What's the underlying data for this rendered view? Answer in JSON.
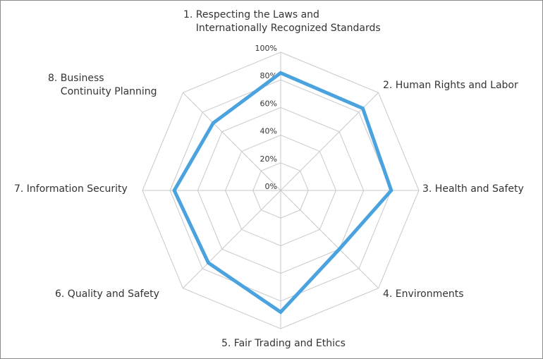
{
  "chart_data": {
    "type": "radar",
    "title": "",
    "categories": [
      "1. Respecting the Laws and\n    Internationally Recognized Standards",
      "2. Human Rights and Labor",
      "3. Health and Safety",
      "4. Environments",
      "5. Fair Trading and Ethics",
      "6. Quality and Safety",
      "7. Information Security",
      "8. Business\n    Continuity Planning"
    ],
    "series": [
      {
        "values": [
          85,
          84,
          80,
          60,
          88,
          74,
          77,
          69
        ],
        "color": "#4aa3df"
      }
    ],
    "rlim": [
      0,
      100
    ],
    "tick_labels": [
      "0%",
      "20%",
      "40%",
      "60%",
      "80%",
      "100%"
    ],
    "grid": true,
    "legend": "none"
  }
}
